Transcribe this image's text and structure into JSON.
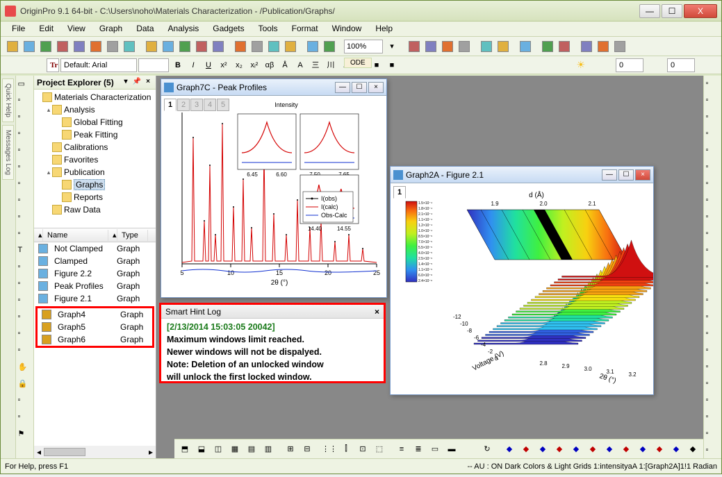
{
  "window": {
    "title": "OriginPro 9.1 64-bit - C:\\Users\\noho\\Materials Characterization - /Publication/Graphs/",
    "min_label": "—",
    "max_label": "☐",
    "close_label": "X"
  },
  "menus": [
    "File",
    "Edit",
    "View",
    "Graph",
    "Data",
    "Analysis",
    "Gadgets",
    "Tools",
    "Format",
    "Window",
    "Help"
  ],
  "toolbar1": {
    "zoom_value": "100%",
    "icons": [
      "new-project",
      "new-workbook",
      "new-excel",
      "new-matrix",
      "new-function",
      "new-graph",
      "new-layout",
      "new-notes",
      "sep",
      "open",
      "open-template",
      "open-excel",
      "save",
      "save-template",
      "sep",
      "import-wizard",
      "import-single",
      "import-multi",
      "reimport",
      "sep",
      "batch",
      "recalc",
      "sep",
      "zoom",
      "sep",
      "print",
      "print-preview",
      "slide",
      "movie",
      "sep",
      "duplicate",
      "refresh",
      "sep",
      "add-column",
      "sep",
      "code-builder",
      "dialog",
      "sep",
      "sigma",
      "sigma-sub",
      "poly"
    ]
  },
  "ode_label": "ODE",
  "fmt_toolbar": {
    "font_prefix": "Tr",
    "font_name": "Default: Arial",
    "font_size": "",
    "buttons": [
      "B",
      "I",
      "U",
      "x²",
      "x₂",
      "xᵢ²",
      "αβ",
      "Å",
      "A",
      "三",
      "川",
      "A",
      "三",
      "■",
      "■"
    ],
    "line_width": "0",
    "line_width2": "0"
  },
  "quick_help_label": "Quick Help",
  "messages_log_label": "Messages Log",
  "project_explorer": {
    "title": "Project Explorer (5)",
    "tree": [
      {
        "level": 0,
        "tri": "",
        "label": "Materials Characterization",
        "folder": true
      },
      {
        "level": 1,
        "tri": "▴",
        "label": "Analysis",
        "folder": true
      },
      {
        "level": 2,
        "tri": "",
        "label": "Global Fitting",
        "folder": true
      },
      {
        "level": 2,
        "tri": "",
        "label": "Peak Fitting",
        "folder": true
      },
      {
        "level": 1,
        "tri": "",
        "label": "Calibrations",
        "folder": true
      },
      {
        "level": 1,
        "tri": "",
        "label": "Favorites",
        "folder": true
      },
      {
        "level": 1,
        "tri": "▴",
        "label": "Publication",
        "folder": true
      },
      {
        "level": 2,
        "tri": "",
        "label": "Graphs",
        "folder": true,
        "selected": true
      },
      {
        "level": 2,
        "tri": "",
        "label": "Reports",
        "folder": true
      },
      {
        "level": 1,
        "tri": "",
        "label": "Raw Data",
        "folder": true
      }
    ],
    "list_cols": {
      "name": "Name",
      "type": "Type"
    },
    "list": [
      {
        "name": "Not Clamped",
        "type": "Graph",
        "hl": false,
        "iconColor": "#6ab0e0"
      },
      {
        "name": "Clamped",
        "type": "Graph",
        "hl": false,
        "iconColor": "#6ab0e0"
      },
      {
        "name": "Figure 2.2",
        "type": "Graph",
        "hl": false,
        "iconColor": "#6ab0e0"
      },
      {
        "name": "Peak Profiles",
        "type": "Graph",
        "hl": false,
        "iconColor": "#6ab0e0"
      },
      {
        "name": "Figure 2.1",
        "type": "Graph",
        "hl": false,
        "iconColor": "#6ab0e0"
      },
      {
        "name": "Graph4",
        "type": "Graph",
        "hl": true,
        "iconColor": "#d8a020"
      },
      {
        "name": "Graph5",
        "type": "Graph",
        "hl": true,
        "iconColor": "#d8a020"
      },
      {
        "name": "Graph6",
        "type": "Graph",
        "hl": true,
        "iconColor": "#d8a020"
      }
    ]
  },
  "graph7c": {
    "title": "Graph7C - Peak Profiles",
    "tabs": [
      "1",
      "2",
      "3",
      "4",
      "5"
    ],
    "active_tab": 0,
    "xlabel": "2θ (°)",
    "ylabel": "Intensity",
    "xticks": [
      5,
      10,
      15,
      20,
      25
    ],
    "inset_ticks": [
      [
        "6.45",
        "6.60"
      ],
      [
        "7.50",
        "7.65"
      ],
      [
        "14.40",
        "14.55"
      ]
    ],
    "legend": [
      "I(obs)",
      "I(calc)",
      "Obs-Calc"
    ],
    "legend_colors": [
      "#000000",
      "#d40000",
      "#1030d0"
    ],
    "spectrum_color": "#d40000",
    "obs_marker_color": "#000000",
    "diff_color": "#1030d0",
    "background": "#ffffff"
  },
  "graph2a": {
    "title": "Graph2A - Figure 2.1",
    "tab": "1",
    "xlabel": "2θ (°)",
    "ylabel": "Voltage (V)",
    "zlabel": "d (Å)",
    "xticks": [
      "2.8",
      "2.9",
      "3.0",
      "3.1",
      "3.2"
    ],
    "yticks": [
      "-12",
      "-10",
      "-8",
      "-6",
      "-4",
      "-2",
      "0"
    ],
    "zticks": [
      "1.9",
      "2.0",
      "2.1"
    ],
    "colorbar_labels": [
      "1.5×10⁻⁴",
      "1.8×10⁻⁴",
      "2.1×10⁻⁴",
      "1.1×10⁻⁴",
      "1.2×10⁻⁴",
      "1.0×10⁻⁴",
      "8.5×10⁻⁵",
      "7.0×10⁻⁵",
      "5.5×10⁻⁵",
      "4.0×10⁻⁵",
      "2.5×10⁻⁵",
      "1.4×10⁻⁵",
      "1.1×10⁻⁵",
      "6.0×10⁻⁶",
      "2.4×10⁻⁶"
    ],
    "rainbow": [
      "#3030c0",
      "#3060e0",
      "#30c0f0",
      "#20e0a0",
      "#40f040",
      "#c0f020",
      "#f8e010",
      "#f8a010",
      "#f04010",
      "#d01010"
    ]
  },
  "smart_hint": {
    "title": "Smart Hint Log",
    "close": "×",
    "timestamp": "[2/13/2014 15:03:05 20042]",
    "lines": [
      "Maximum windows limit reached.",
      "Newer windows will not be dispalyed.",
      "Note: Deletion of an unlocked window",
      "will unlock the first locked window."
    ]
  },
  "bottom_icons_left": [
    "⬒",
    "⬓",
    "◫",
    "▦",
    "▤",
    "▥",
    "sep",
    "⊞",
    "⊟",
    "sep",
    "⋮⋮",
    "⫿",
    "⊡",
    "⬚",
    "sep",
    "≡",
    "≣",
    "▭",
    "▬"
  ],
  "bottom_icons_right": [
    "↻",
    "sep",
    "◆",
    "◆",
    "◆",
    "◆",
    "◆",
    "◆",
    "◆",
    "◆",
    "◆",
    "◆",
    "◆",
    "◆"
  ],
  "bottom_right_colors": [
    "#c00000",
    "#0000c0",
    "#c00000",
    "#0000c0",
    "#c00000",
    "#0000c0",
    "#c00000",
    "#0000c0",
    "#c00000",
    "#0000c0",
    "#c00000",
    "#0000c0"
  ],
  "status": {
    "left": "For Help, press F1",
    "right": "--  AU : ON  Dark Colors & Light Grids  1:intensityaA  1:[Graph2A]1!1  Radian"
  }
}
